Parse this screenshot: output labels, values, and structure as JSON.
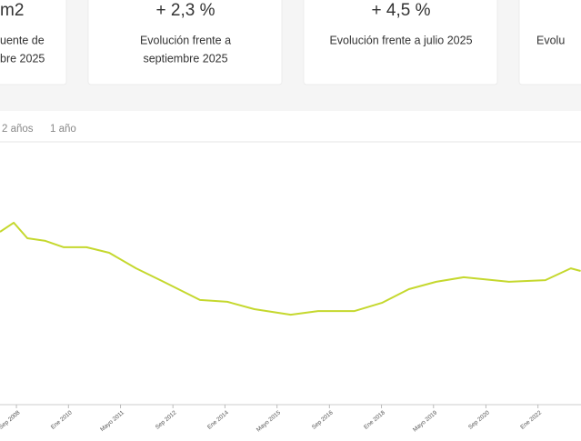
{
  "cards": [
    {
      "value": "m2",
      "lines": [
        "uente de",
        "bre 2025"
      ]
    },
    {
      "value": "+ 2,3 %",
      "lines": [
        "Evolución frente a",
        "septiembre 2025"
      ]
    },
    {
      "value": "+ 4,5 %",
      "lines": [
        "Evolución frente a julio 2025"
      ]
    },
    {
      "value": "",
      "lines": [
        "Evolu"
      ]
    }
  ],
  "tabs": [
    "2 años",
    "1 año"
  ],
  "chart_data": {
    "type": "line",
    "x": [
      2008.25,
      2008.6,
      2008.95,
      2009.41,
      2009.88,
      2010.46,
      2011.04,
      2011.73,
      2012.43,
      2013.36,
      2014.06,
      2014.75,
      2015.68,
      2016.38,
      2017.31,
      2018.01,
      2018.7,
      2019.4,
      2020.1,
      2021.26,
      2022.19,
      2022.84,
      2023.09
    ],
    "series": [
      {
        "color": "#c5d82e",
        "values": [
          65.5,
          69,
          63.1,
          62.1,
          59.7,
          59.7,
          57.6,
          51.7,
          46.6,
          39.7,
          39.0,
          36.2,
          34.1,
          35.5,
          35.5,
          38.6,
          43.8,
          46.6,
          48.3,
          46.6,
          47.2,
          51.7,
          50.7
        ]
      }
    ],
    "xlim": [
      2008.25,
      2023.1
    ],
    "ylim": [
      0,
      100
    ],
    "xticks": [
      {
        "value": 2008.67,
        "label": "Sep 2008"
      },
      {
        "value": 2010.0,
        "label": "Ene 2010"
      },
      {
        "value": 2011.33,
        "label": "Mayo 2011"
      },
      {
        "value": 2012.67,
        "label": "Sep 2012"
      },
      {
        "value": 2014.0,
        "label": "Ene 2014"
      },
      {
        "value": 2015.33,
        "label": "Mayo 2015"
      },
      {
        "value": 2016.67,
        "label": "Sep 2016"
      },
      {
        "value": 2018.0,
        "label": "Ene 2018"
      },
      {
        "value": 2019.33,
        "label": "Mayo 2019"
      },
      {
        "value": 2020.67,
        "label": "Sep 2020"
      },
      {
        "value": 2022.0,
        "label": "Ene 2022"
      }
    ]
  }
}
